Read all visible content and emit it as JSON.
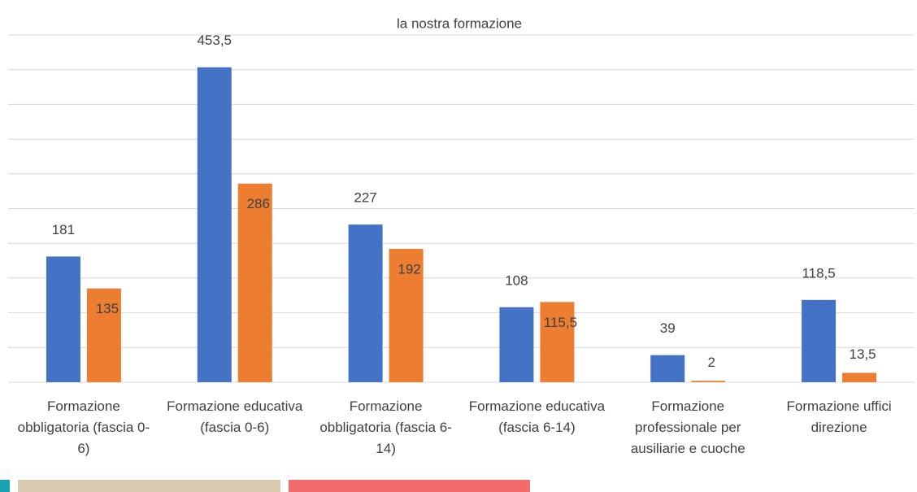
{
  "chart_data": {
    "type": "bar",
    "title": "la nostra formazione",
    "categories": [
      "Formazione obbligatoria (fascia 0-6)",
      "Formazione educativa (fascia 0-6)",
      "Formazione obbligatoria (fascia 6-14)",
      "Formazione educativa (fascia 6-14)",
      "Formazione professionale per ausiliarie e cuoche",
      "Formazione uffici direzione"
    ],
    "series": [
      {
        "color": "#4472c4",
        "values": [
          181,
          453.5,
          227,
          108,
          39,
          118.5
        ],
        "value_labels": [
          "181",
          "453,5",
          "227",
          "108",
          "39",
          "118,5"
        ]
      },
      {
        "color": "#ed7d31",
        "values": [
          135,
          286,
          192,
          115.5,
          2,
          13.5
        ],
        "value_labels": [
          "135",
          "286",
          "192",
          "115,5",
          "2",
          "13,5"
        ]
      }
    ],
    "ylim": [
      0,
      500
    ],
    "yticks": [
      0,
      50,
      100,
      150,
      200,
      250,
      300,
      350,
      400,
      450,
      500
    ],
    "grid": true
  }
}
